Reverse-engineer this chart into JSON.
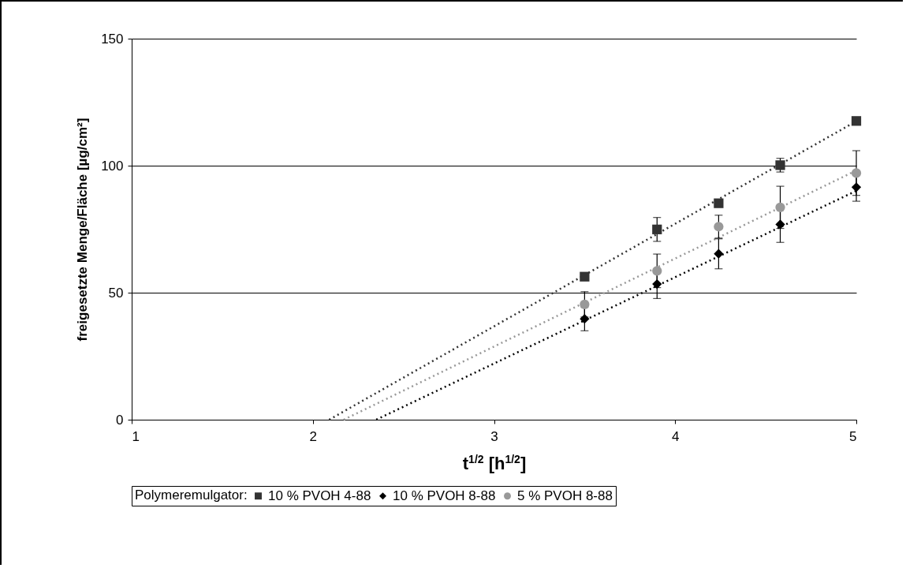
{
  "chart_data": {
    "type": "scatter",
    "xlabel": "t$^{1/2}$ [h$^{1/2}$]",
    "ylabel": "freigesetzte Menge/Fläche [µg/cm²]",
    "legend_title": "Polymeremulgator:",
    "x": [
      3.5,
      3.9,
      4.24,
      4.58,
      5
    ],
    "xlim": [
      1,
      5
    ],
    "xticks": [
      1,
      2,
      3,
      4,
      5
    ],
    "ylim": [
      0,
      150
    ],
    "yticks": [
      0,
      50,
      100,
      150
    ],
    "grid": "y",
    "legend": "bottom",
    "series": [
      {
        "name": "10 % PVOH 4-88",
        "marker": "square",
        "color": "#333333",
        "values": [
          56.3,
          74.9,
          85.2,
          100.2,
          117.6
        ],
        "errors": [
          null,
          4.7,
          null,
          2.7,
          null
        ]
      },
      {
        "name": "10 % PVOH 8-88",
        "marker": "diamond",
        "color": "#000000",
        "values": [
          39.7,
          53.4,
          65.3,
          76.9,
          91.5
        ],
        "errors": [
          4.7,
          5.7,
          5.9,
          7.1,
          5.5
        ]
      },
      {
        "name": "5 % PVOH 8-88",
        "marker": "circle",
        "color": "#999999",
        "values": [
          45.4,
          58.6,
          76.0,
          83.6,
          97.1
        ],
        "errors": [
          5.0,
          6.6,
          4.5,
          8.3,
          8.8
        ]
      },
      {
        "type": "line",
        "line_style": "dotted",
        "color": "#333333",
        "x": [
          2.09,
          5
        ],
        "values": [
          0,
          117.5
        ]
      },
      {
        "type": "line",
        "line_style": "dotted",
        "color": "#000000",
        "x": [
          2.35,
          5
        ],
        "values": [
          0,
          90.1
        ]
      },
      {
        "type": "line",
        "line_style": "dotted",
        "color": "#999999",
        "x": [
          2.17,
          5
        ],
        "values": [
          0,
          98.1
        ]
      }
    ]
  }
}
